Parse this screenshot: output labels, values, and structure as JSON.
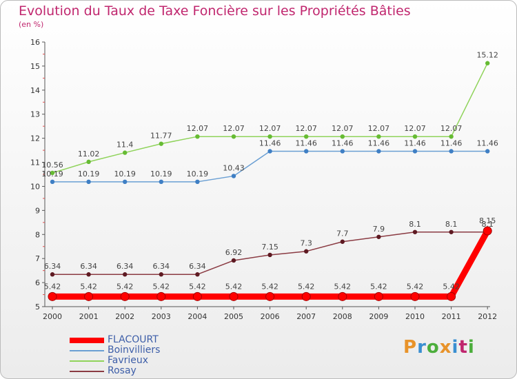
{
  "title": "Evolution du Taux de Taxe Foncière sur les Propriétés Bâties",
  "subtitle": "(en %)",
  "logo": {
    "text": "Proxiti",
    "colors": [
      "#e8932a",
      "#3a8fd1",
      "#4cae3c",
      "#e8932a",
      "#3a8fd1",
      "#c0266e",
      "#4cae3c"
    ]
  },
  "chart_data": {
    "type": "line",
    "title": "Evolution du Taux de Taxe Foncière sur les Propriétés Bâties",
    "ylabel": "(en %)",
    "xlabel": "",
    "categories": [
      "2000",
      "2001",
      "2002",
      "2003",
      "2004",
      "2005",
      "2006",
      "2007",
      "2008",
      "2009",
      "2010",
      "2011",
      "2012"
    ],
    "ylim": [
      5,
      16
    ],
    "yticks": [
      "5",
      "6",
      "7",
      "8",
      "9",
      "10",
      "11",
      "12",
      "13",
      "14",
      "15",
      "16"
    ],
    "grid": false,
    "legend_position": "bottom-left",
    "series": [
      {
        "name": "FLACOURT",
        "color": "#ff0000",
        "line_color": "#ff0000",
        "point_color": "#ff0000",
        "values": [
          5.42,
          5.42,
          5.42,
          5.42,
          5.42,
          5.42,
          5.42,
          5.42,
          5.42,
          5.42,
          5.42,
          5.42,
          8.15
        ],
        "labels": [
          "5.42",
          "5.42",
          "5.42",
          "5.42",
          "5.42",
          "5.42",
          "5.42",
          "5.42",
          "5.42",
          "5.42",
          "5.42",
          "5.42",
          "8.15"
        ],
        "label_pos": "above"
      },
      {
        "name": "Boinvilliers",
        "color": "#6a9fd3",
        "line_color": "#6a9fd3",
        "point_color": "#3f7fc4",
        "values": [
          10.19,
          10.19,
          10.19,
          10.19,
          10.19,
          10.43,
          11.46,
          11.46,
          11.46,
          11.46,
          11.46,
          11.46,
          11.46
        ],
        "labels": [
          "10.19",
          "10.19",
          "10.19",
          "10.19",
          "10.19",
          "10.43",
          "11.46",
          "11.46",
          "11.46",
          "11.46",
          "11.46",
          "11.46",
          "11.46"
        ],
        "label_pos": "above"
      },
      {
        "name": "Favrieux",
        "color": "#8fd35a",
        "line_color": "#8fd35a",
        "point_color": "#66bb33",
        "values": [
          10.56,
          11.02,
          11.4,
          11.77,
          12.07,
          12.07,
          12.07,
          12.07,
          12.07,
          12.07,
          12.07,
          12.07,
          15.12
        ],
        "labels": [
          "10.56",
          "11.02",
          "11.4",
          "11.77",
          "12.07",
          "12.07",
          "12.07",
          "12.07",
          "12.07",
          "12.07",
          "12.07",
          "12.07",
          "15.12"
        ],
        "label_pos": "above"
      },
      {
        "name": "Rosay",
        "color": "#7b2a32",
        "line_color": "#8a3a42",
        "point_color": "#5e1a22",
        "values": [
          6.34,
          6.34,
          6.34,
          6.34,
          6.34,
          6.92,
          7.15,
          7.3,
          7.7,
          7.9,
          8.1,
          8.1,
          8.1
        ],
        "labels": [
          "6.34",
          "6.34",
          "6.34",
          "6.34",
          "6.34",
          "6.92",
          "7.15",
          "7.3",
          "7.7",
          "7.9",
          "8.1",
          "8.1",
          "8.1"
        ],
        "label_pos": "above"
      }
    ]
  }
}
